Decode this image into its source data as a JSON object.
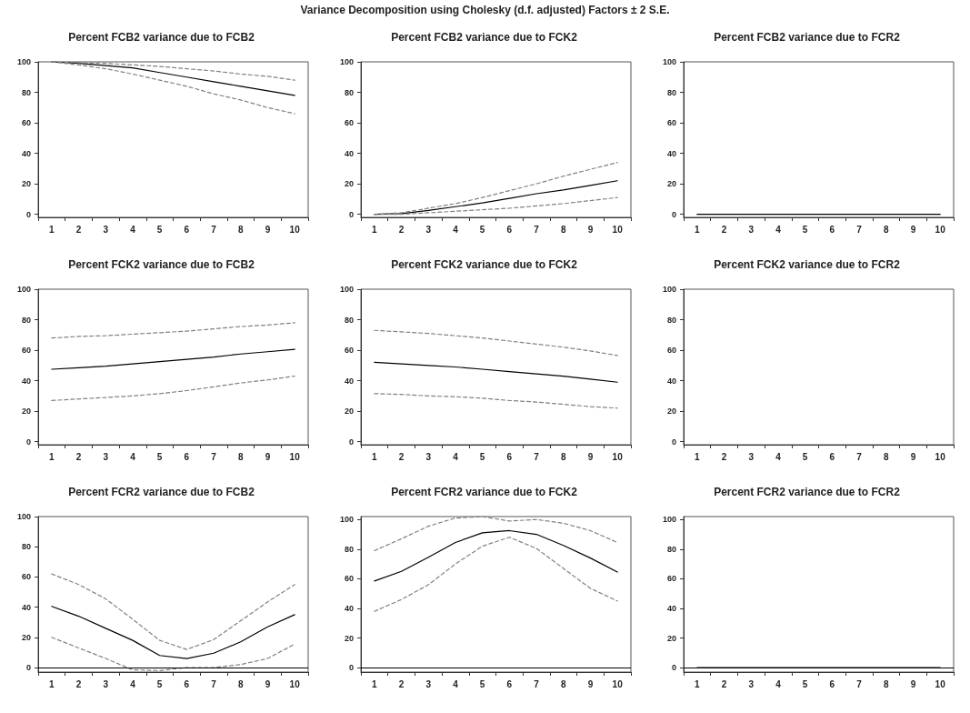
{
  "chart_data": [
    {
      "type": "line",
      "title": "Percent FCB2 variance due to FCB2",
      "annotations": [
        "Variance Decomposition using Cholesky (d.f. adjusted) Factors ± 2 S.E."
      ],
      "categories": [
        "1",
        "2",
        "3",
        "4",
        "5",
        "6",
        "7",
        "8",
        "9",
        "10"
      ],
      "ylim": [
        -2,
        100
      ],
      "yticks": [
        0,
        20,
        40,
        60,
        80,
        100
      ],
      "grid": false,
      "marker": "none",
      "series": [
        {
          "color": "#000000",
          "line_style": "solid",
          "values": [
            100,
            99,
            97.5,
            96,
            93,
            90,
            87,
            84,
            81,
            78
          ]
        },
        {
          "color": "#808080",
          "line_style": "dashed",
          "values": [
            100,
            99.5,
            99,
            98,
            97,
            95.5,
            94,
            92,
            90.5,
            88
          ]
        },
        {
          "color": "#808080",
          "line_style": "dashed",
          "values": [
            100,
            98,
            95.5,
            92,
            88,
            84,
            79,
            75,
            70,
            66
          ]
        }
      ]
    },
    {
      "type": "line",
      "title": "Percent FCB2 variance due to FCK2",
      "categories": [
        "1",
        "2",
        "3",
        "4",
        "5",
        "6",
        "7",
        "8",
        "9",
        "10"
      ],
      "ylim": [
        -2,
        100
      ],
      "yticks": [
        0,
        20,
        40,
        60,
        80,
        100
      ],
      "grid": false,
      "marker": "none",
      "series": [
        {
          "color": "#000000",
          "line_style": "solid",
          "values": [
            0,
            0.5,
            2.5,
            5,
            7.5,
            10.5,
            13.5,
            16,
            19,
            22
          ]
        },
        {
          "color": "#808080",
          "line_style": "dashed",
          "values": [
            0,
            1,
            4,
            7,
            11,
            15.5,
            20,
            25,
            29.5,
            34
          ]
        },
        {
          "color": "#808080",
          "line_style": "dashed",
          "values": [
            0,
            0,
            1,
            2,
            3,
            4,
            5.5,
            7,
            9,
            11
          ]
        }
      ]
    },
    {
      "type": "line",
      "title": "Percent FCB2 variance due to FCR2",
      "categories": [
        "1",
        "2",
        "3",
        "4",
        "5",
        "6",
        "7",
        "8",
        "9",
        "10"
      ],
      "ylim": [
        -2,
        100
      ],
      "yticks": [
        0,
        20,
        40,
        60,
        80,
        100
      ],
      "grid": false,
      "marker": "none",
      "series": [
        {
          "color": "#000000",
          "line_style": "solid",
          "values": [
            0,
            0,
            0,
            0,
            0,
            0,
            0,
            0,
            0,
            0
          ]
        }
      ]
    },
    {
      "type": "line",
      "title": "Percent FCK2 variance due to FCB2",
      "categories": [
        "1",
        "2",
        "3",
        "4",
        "5",
        "6",
        "7",
        "8",
        "9",
        "10"
      ],
      "ylim": [
        -2,
        100
      ],
      "yticks": [
        0,
        20,
        40,
        60,
        80,
        100
      ],
      "grid": false,
      "marker": "none",
      "series": [
        {
          "color": "#000000",
          "line_style": "solid",
          "values": [
            47.5,
            48.5,
            49.5,
            51,
            52.5,
            54,
            55.5,
            57.5,
            59,
            60.5
          ]
        },
        {
          "color": "#808080",
          "line_style": "dashed",
          "values": [
            68,
            69,
            69.5,
            70.5,
            71.5,
            72.5,
            74,
            75.5,
            76.5,
            78
          ]
        },
        {
          "color": "#808080",
          "line_style": "dashed",
          "values": [
            27,
            28,
            29,
            30,
            31.5,
            33.5,
            36,
            38.5,
            40.5,
            43
          ]
        }
      ]
    },
    {
      "type": "line",
      "title": "Percent FCK2 variance due to FCK2",
      "categories": [
        "1",
        "2",
        "3",
        "4",
        "5",
        "6",
        "7",
        "8",
        "9",
        "10"
      ],
      "ylim": [
        -2,
        100
      ],
      "yticks": [
        0,
        20,
        40,
        60,
        80,
        100
      ],
      "grid": false,
      "marker": "none",
      "series": [
        {
          "color": "#000000",
          "line_style": "solid",
          "values": [
            52,
            51,
            50,
            49,
            47.5,
            46,
            44.5,
            43,
            41,
            39
          ]
        },
        {
          "color": "#808080",
          "line_style": "dashed",
          "values": [
            73,
            72,
            71,
            69.5,
            68,
            66,
            64,
            62,
            59.5,
            56.5
          ]
        },
        {
          "color": "#808080",
          "line_style": "dashed",
          "values": [
            31.5,
            31,
            30,
            29.5,
            28.5,
            27,
            26,
            24.5,
            23,
            22
          ]
        }
      ]
    },
    {
      "type": "line",
      "title": "Percent FCK2 variance due to FCR2",
      "categories": [
        "1",
        "2",
        "3",
        "4",
        "5",
        "6",
        "7",
        "8",
        "9",
        "10"
      ],
      "ylim": [
        -2,
        100
      ],
      "yticks": [
        0,
        20,
        40,
        60,
        80,
        100
      ],
      "grid": false,
      "marker": "none"
    },
    {
      "type": "line",
      "title": "Percent FCR2 variance due to FCB2",
      "categories": [
        "1",
        "2",
        "3",
        "4",
        "5",
        "6",
        "7",
        "8",
        "9",
        "10"
      ],
      "ylim": [
        -3,
        100
      ],
      "yticks": [
        0,
        20,
        40,
        60,
        80,
        100
      ],
      "grid": false,
      "marker": "none",
      "ref_lines": [
        {
          "axis": "y",
          "value": 0,
          "color": "#000000"
        }
      ],
      "series": [
        {
          "color": "#000000",
          "line_style": "solid",
          "values": [
            40.5,
            34,
            26,
            18,
            8,
            6,
            9.5,
            17,
            27,
            35
          ]
        },
        {
          "color": "#808080",
          "line_style": "dashed",
          "values": [
            62,
            55,
            45.5,
            32,
            18,
            12,
            18.5,
            31,
            43.5,
            55
          ]
        },
        {
          "color": "#808080",
          "line_style": "dashed",
          "values": [
            20,
            13,
            6,
            -1.5,
            -2,
            0,
            0,
            2,
            6,
            15.5
          ]
        }
      ]
    },
    {
      "type": "line",
      "title": "Percent FCR2 variance due to FCK2",
      "categories": [
        "1",
        "2",
        "3",
        "4",
        "5",
        "6",
        "7",
        "8",
        "9",
        "10"
      ],
      "ylim": [
        -3,
        102
      ],
      "yticks": [
        0,
        20,
        40,
        60,
        80,
        100
      ],
      "grid": false,
      "marker": "none",
      "ref_lines": [
        {
          "axis": "y",
          "value": 0,
          "color": "#000000"
        }
      ],
      "series": [
        {
          "color": "#000000",
          "line_style": "solid",
          "values": [
            58.5,
            65,
            74.5,
            84.5,
            91,
            92.5,
            90,
            82.5,
            74,
            64.5
          ]
        },
        {
          "color": "#808080",
          "line_style": "dashed",
          "values": [
            79,
            87,
            95.5,
            101,
            102,
            99,
            100,
            97.5,
            92.5,
            84.5
          ]
        },
        {
          "color": "#808080",
          "line_style": "dashed",
          "values": [
            38,
            46,
            56,
            70,
            82,
            88,
            80.5,
            67,
            53.5,
            45
          ]
        }
      ]
    },
    {
      "type": "line",
      "title": "Percent FCR2 variance due to FCR2",
      "categories": [
        "1",
        "2",
        "3",
        "4",
        "5",
        "6",
        "7",
        "8",
        "9",
        "10"
      ],
      "ylim": [
        -3,
        102
      ],
      "yticks": [
        0,
        20,
        40,
        60,
        80,
        100
      ],
      "grid": false,
      "marker": "none",
      "ref_lines": [
        {
          "axis": "y",
          "value": 0,
          "color": "#000000"
        }
      ],
      "series": [
        {
          "color": "#000000",
          "line_style": "solid",
          "values": [
            0,
            0,
            0,
            0,
            0,
            0,
            0,
            0,
            0,
            0
          ]
        }
      ]
    }
  ]
}
